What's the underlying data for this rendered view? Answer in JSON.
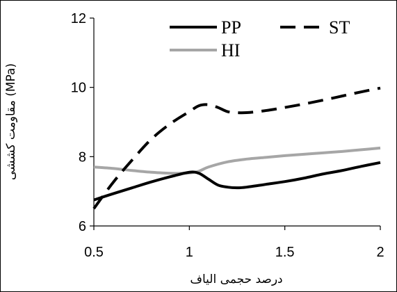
{
  "chart_data": {
    "type": "line",
    "title": "",
    "xlabel": "درصد حجمی الیاف",
    "ylabel": "مقاومت کششی (MPa)",
    "xlim": [
      0.5,
      2
    ],
    "ylim": [
      6,
      12
    ],
    "xticks": [
      0.5,
      1,
      1.5,
      2
    ],
    "xtick_labels": [
      "0.5",
      "1",
      "1.5",
      "2"
    ],
    "yticks": [
      6,
      8,
      10,
      12
    ],
    "ytick_labels": [
      "6",
      "8",
      "10",
      "12"
    ],
    "grid": false,
    "legend": "top",
    "series": [
      {
        "name": "PP",
        "style": "solid",
        "color": "#000000",
        "x": [
          0.5,
          0.6,
          0.7,
          0.8,
          0.9,
          1.0,
          1.05,
          1.1,
          1.15,
          1.2,
          1.25,
          1.3,
          1.4,
          1.5,
          1.6,
          1.7,
          1.8,
          1.9,
          2.0
        ],
        "y": [
          6.75,
          6.93,
          7.1,
          7.27,
          7.42,
          7.55,
          7.52,
          7.35,
          7.18,
          7.12,
          7.1,
          7.12,
          7.2,
          7.28,
          7.38,
          7.5,
          7.6,
          7.72,
          7.83
        ]
      },
      {
        "name": "ST",
        "style": "dashed",
        "color": "#000000",
        "x": [
          0.5,
          0.6,
          0.7,
          0.8,
          0.9,
          1.0,
          1.05,
          1.1,
          1.15,
          1.2,
          1.25,
          1.3,
          1.4,
          1.5,
          1.6,
          1.7,
          1.8,
          1.9,
          2.0
        ],
        "y": [
          6.5,
          7.25,
          7.9,
          8.5,
          8.95,
          9.3,
          9.47,
          9.5,
          9.42,
          9.3,
          9.27,
          9.27,
          9.33,
          9.42,
          9.52,
          9.63,
          9.75,
          9.87,
          9.98
        ]
      },
      {
        "name": "HI",
        "style": "solid",
        "color": "#a6a6a6",
        "x": [
          0.5,
          0.6,
          0.7,
          0.8,
          0.9,
          1.0,
          1.05,
          1.1,
          1.2,
          1.3,
          1.4,
          1.5,
          1.6,
          1.7,
          1.8,
          1.9,
          2.0
        ],
        "y": [
          7.7,
          7.66,
          7.6,
          7.55,
          7.52,
          7.53,
          7.58,
          7.7,
          7.85,
          7.93,
          7.98,
          8.03,
          8.07,
          8.11,
          8.15,
          8.2,
          8.25
        ]
      }
    ]
  }
}
